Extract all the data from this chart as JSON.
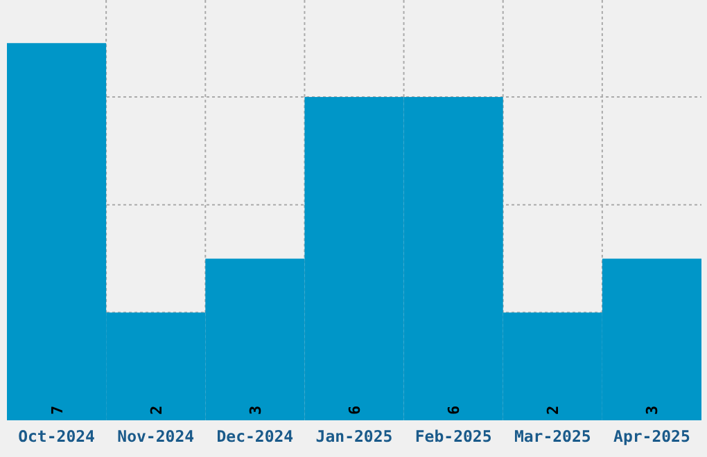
{
  "chart_data": {
    "type": "bar",
    "categories": [
      "Oct-2024",
      "Nov-2024",
      "Dec-2024",
      "Jan-2025",
      "Feb-2025",
      "Mar-2025",
      "Apr-2025"
    ],
    "values": [
      7,
      2,
      3,
      6,
      6,
      2,
      3
    ],
    "color": "#0096c8",
    "ylim": [
      0,
      7.8
    ],
    "yticks": [
      {
        "value": 2,
        "label": null
      },
      {
        "value": 4,
        "label": null
      },
      {
        "value": 6,
        "label": null
      }
    ],
    "tick_labels": "x",
    "grid": true,
    "data_labels": true
  }
}
